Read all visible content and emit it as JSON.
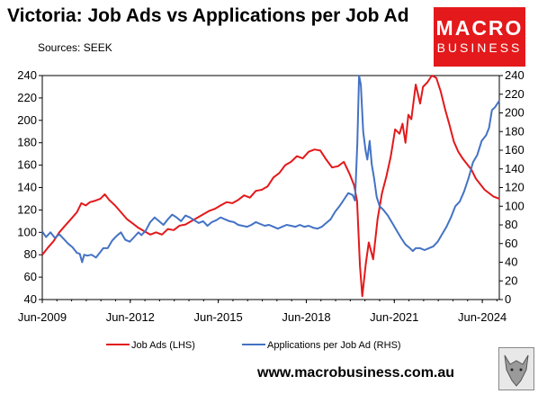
{
  "header": {
    "title": "Victoria: Job Ads vs Applications per Job Ad",
    "source": "Sources: SEEK"
  },
  "logo": {
    "line1": "MACRO",
    "line2": "BUSINESS"
  },
  "footer": {
    "url": "www.macrobusiness.com.au"
  },
  "colors": {
    "job_ads": "#e3191b",
    "applications": "#4472c4",
    "logo_bg": "#e3191b"
  },
  "chart_data": {
    "type": "line",
    "x_tick_labels": [
      "Jun-2009",
      "Jun-2012",
      "Jun-2015",
      "Jun-2018",
      "Jun-2021",
      "Jun-2024"
    ],
    "x_range": [
      "2009-06",
      "2024-06"
    ],
    "y_left": {
      "min": 40,
      "max": 240,
      "step": 20,
      "ticks": [
        "40",
        "60",
        "80",
        "100",
        "120",
        "140",
        "160",
        "180",
        "200",
        "220",
        "240"
      ]
    },
    "y_right": {
      "min": 0,
      "max": 240,
      "step": 20,
      "ticks": [
        "0",
        "20",
        "40",
        "60",
        "80",
        "100",
        "120",
        "140",
        "160",
        "180",
        "200",
        "220",
        "240"
      ]
    },
    "grid": false,
    "legend_position": "bottom",
    "series": [
      {
        "name": "Job Ads (LHS)",
        "axis": "left",
        "color": "#e3191b",
        "points": [
          [
            2009.42,
            80
          ],
          [
            2009.6,
            86
          ],
          [
            2009.8,
            92
          ],
          [
            2010.0,
            100
          ],
          [
            2010.2,
            106
          ],
          [
            2010.4,
            112
          ],
          [
            2010.6,
            118
          ],
          [
            2010.75,
            126
          ],
          [
            2010.9,
            124
          ],
          [
            2011.05,
            127
          ],
          [
            2011.2,
            128
          ],
          [
            2011.4,
            130
          ],
          [
            2011.55,
            134
          ],
          [
            2011.7,
            129
          ],
          [
            2011.9,
            124
          ],
          [
            2012.1,
            118
          ],
          [
            2012.3,
            112
          ],
          [
            2012.5,
            108
          ],
          [
            2012.7,
            104
          ],
          [
            2012.9,
            101
          ],
          [
            2013.1,
            98
          ],
          [
            2013.3,
            100
          ],
          [
            2013.5,
            98
          ],
          [
            2013.7,
            103
          ],
          [
            2013.9,
            102
          ],
          [
            2014.1,
            106
          ],
          [
            2014.3,
            107
          ],
          [
            2014.5,
            110
          ],
          [
            2014.7,
            113
          ],
          [
            2014.9,
            116
          ],
          [
            2015.1,
            119
          ],
          [
            2015.3,
            121
          ],
          [
            2015.5,
            124
          ],
          [
            2015.7,
            127
          ],
          [
            2015.9,
            126
          ],
          [
            2016.1,
            129
          ],
          [
            2016.3,
            133
          ],
          [
            2016.5,
            131
          ],
          [
            2016.7,
            137
          ],
          [
            2016.9,
            138
          ],
          [
            2017.1,
            141
          ],
          [
            2017.3,
            149
          ],
          [
            2017.5,
            153
          ],
          [
            2017.7,
            160
          ],
          [
            2017.9,
            163
          ],
          [
            2018.1,
            168
          ],
          [
            2018.3,
            166
          ],
          [
            2018.5,
            172
          ],
          [
            2018.7,
            174
          ],
          [
            2018.9,
            173
          ],
          [
            2019.1,
            165
          ],
          [
            2019.3,
            158
          ],
          [
            2019.5,
            159
          ],
          [
            2019.7,
            163
          ],
          [
            2019.9,
            152
          ],
          [
            2020.05,
            142
          ],
          [
            2020.15,
            128
          ],
          [
            2020.25,
            70
          ],
          [
            2020.33,
            43
          ],
          [
            2020.45,
            72
          ],
          [
            2020.55,
            91
          ],
          [
            2020.7,
            76
          ],
          [
            2020.85,
            112
          ],
          [
            2021.0,
            135
          ],
          [
            2021.15,
            150
          ],
          [
            2021.3,
            168
          ],
          [
            2021.45,
            192
          ],
          [
            2021.6,
            188
          ],
          [
            2021.7,
            197
          ],
          [
            2021.8,
            180
          ],
          [
            2021.9,
            205
          ],
          [
            2022.0,
            201
          ],
          [
            2022.15,
            232
          ],
          [
            2022.3,
            215
          ],
          [
            2022.4,
            230
          ],
          [
            2022.55,
            234
          ],
          [
            2022.7,
            240
          ],
          [
            2022.85,
            238
          ],
          [
            2023.0,
            226
          ],
          [
            2023.15,
            210
          ],
          [
            2023.3,
            196
          ],
          [
            2023.45,
            181
          ],
          [
            2023.6,
            172
          ],
          [
            2023.75,
            166
          ],
          [
            2023.9,
            161
          ],
          [
            2024.05,
            156
          ],
          [
            2024.2,
            148
          ],
          [
            2024.35,
            143
          ],
          [
            2024.5,
            138
          ],
          [
            2024.65,
            135
          ],
          [
            2024.8,
            132
          ],
          [
            2025.0,
            130
          ]
        ]
      },
      {
        "name": "Applications per Job Ad (RHS)",
        "axis": "right",
        "color": "#4472c4",
        "points": [
          [
            2009.42,
            73
          ],
          [
            2009.55,
            67
          ],
          [
            2009.7,
            72
          ],
          [
            2009.85,
            66
          ],
          [
            2010.0,
            70
          ],
          [
            2010.15,
            65
          ],
          [
            2010.3,
            60
          ],
          [
            2010.45,
            56
          ],
          [
            2010.6,
            50
          ],
          [
            2010.7,
            49
          ],
          [
            2010.78,
            40
          ],
          [
            2010.85,
            48
          ],
          [
            2010.95,
            47
          ],
          [
            2011.1,
            48
          ],
          [
            2011.25,
            45
          ],
          [
            2011.4,
            51
          ],
          [
            2011.5,
            55
          ],
          [
            2011.65,
            55
          ],
          [
            2011.8,
            63
          ],
          [
            2011.95,
            68
          ],
          [
            2012.1,
            72
          ],
          [
            2012.25,
            64
          ],
          [
            2012.4,
            62
          ],
          [
            2012.55,
            67
          ],
          [
            2012.7,
            72
          ],
          [
            2012.8,
            69
          ],
          [
            2012.95,
            74
          ],
          [
            2013.1,
            83
          ],
          [
            2013.25,
            88
          ],
          [
            2013.4,
            84
          ],
          [
            2013.55,
            80
          ],
          [
            2013.7,
            86
          ],
          [
            2013.85,
            91
          ],
          [
            2014.0,
            88
          ],
          [
            2014.15,
            84
          ],
          [
            2014.3,
            90
          ],
          [
            2014.45,
            88
          ],
          [
            2014.6,
            85
          ],
          [
            2014.75,
            82
          ],
          [
            2014.9,
            84
          ],
          [
            2015.05,
            79
          ],
          [
            2015.2,
            83
          ],
          [
            2015.35,
            85
          ],
          [
            2015.5,
            88
          ],
          [
            2015.65,
            86
          ],
          [
            2015.8,
            84
          ],
          [
            2015.95,
            83
          ],
          [
            2016.1,
            80
          ],
          [
            2016.25,
            79
          ],
          [
            2016.4,
            78
          ],
          [
            2016.55,
            80
          ],
          [
            2016.7,
            83
          ],
          [
            2016.85,
            81
          ],
          [
            2017.0,
            79
          ],
          [
            2017.15,
            80
          ],
          [
            2017.3,
            78
          ],
          [
            2017.45,
            76
          ],
          [
            2017.6,
            78
          ],
          [
            2017.75,
            80
          ],
          [
            2017.9,
            79
          ],
          [
            2018.05,
            78
          ],
          [
            2018.2,
            80
          ],
          [
            2018.35,
            78
          ],
          [
            2018.5,
            79
          ],
          [
            2018.65,
            77
          ],
          [
            2018.8,
            76
          ],
          [
            2018.95,
            78
          ],
          [
            2019.1,
            82
          ],
          [
            2019.25,
            86
          ],
          [
            2019.4,
            94
          ],
          [
            2019.55,
            100
          ],
          [
            2019.7,
            107
          ],
          [
            2019.85,
            114
          ],
          [
            2020.0,
            112
          ],
          [
            2020.08,
            106
          ],
          [
            2020.16,
            168
          ],
          [
            2020.22,
            240
          ],
          [
            2020.28,
            230
          ],
          [
            2020.36,
            180
          ],
          [
            2020.44,
            160
          ],
          [
            2020.5,
            150
          ],
          [
            2020.58,
            170
          ],
          [
            2020.65,
            145
          ],
          [
            2020.73,
            130
          ],
          [
            2020.82,
            110
          ],
          [
            2020.92,
            100
          ],
          [
            2021.05,
            96
          ],
          [
            2021.2,
            90
          ],
          [
            2021.35,
            82
          ],
          [
            2021.5,
            74
          ],
          [
            2021.65,
            66
          ],
          [
            2021.8,
            59
          ],
          [
            2021.95,
            55
          ],
          [
            2022.05,
            52
          ],
          [
            2022.15,
            55
          ],
          [
            2022.3,
            55
          ],
          [
            2022.45,
            53
          ],
          [
            2022.6,
            55
          ],
          [
            2022.75,
            57
          ],
          [
            2022.9,
            62
          ],
          [
            2023.05,
            70
          ],
          [
            2023.2,
            78
          ],
          [
            2023.35,
            88
          ],
          [
            2023.5,
            100
          ],
          [
            2023.65,
            105
          ],
          [
            2023.8,
            116
          ],
          [
            2023.95,
            130
          ],
          [
            2024.1,
            147
          ],
          [
            2024.25,
            155
          ],
          [
            2024.4,
            170
          ],
          [
            2024.55,
            176
          ],
          [
            2024.65,
            184
          ],
          [
            2024.75,
            203
          ],
          [
            2024.85,
            206
          ],
          [
            2025.0,
            213
          ]
        ]
      }
    ]
  }
}
